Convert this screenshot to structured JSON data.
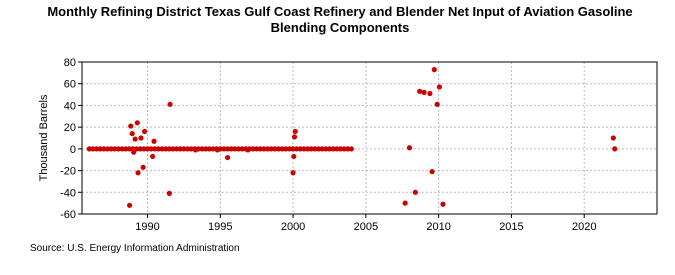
{
  "chart_data": {
    "type": "scatter",
    "title": "Monthly Refining District Texas Gulf Coast Refinery and Blender Net Input of Aviation Gasoline Blending Components",
    "y_label": "Thousand Barrels",
    "source": "Source: U.S. Energy Information Administration",
    "x": [
      1986,
      1986.25,
      1986.5,
      1986.75,
      1987,
      1987.25,
      1987.5,
      1987.75,
      1988,
      1988.25,
      1988.5,
      1988.75,
      1989,
      1989.25,
      1989.5,
      1989.75,
      1990,
      1990.25,
      1990.5,
      1990.75,
      1991,
      1991.25,
      1991.5,
      1991.75,
      1992,
      1992.25,
      1992.5,
      1992.75,
      1993,
      1993.25,
      1993.5,
      1993.75,
      1994,
      1994.25,
      1994.5,
      1994.75,
      1995,
      1995.25,
      1995.5,
      1995.75,
      1996,
      1996.25,
      1996.5,
      1996.75,
      1997,
      1997.25,
      1997.5,
      1997.75,
      1998,
      1998.25,
      1998.5,
      1998.75,
      1999,
      1999.25,
      1999.5,
      1999.75,
      2000,
      2000.25,
      2000.5,
      2000.75,
      2001,
      2001.25,
      2001.5,
      2001.75,
      2002,
      2002.25,
      2002.5,
      2002.75,
      2003,
      2003.25,
      2003.5,
      2003.75,
      2004,
      1988.77,
      1988.85,
      1988.95,
      1989.05,
      1989.15,
      1989.3,
      1989.35,
      1989.55,
      1989.7,
      1989.8,
      1990.35,
      1990.45,
      1991.55,
      1991.5,
      1993.3,
      1994.8,
      1995.5,
      1996.9,
      2000.0,
      2000.05,
      2000.1,
      2000.15,
      2007.7,
      2008.0,
      2008.4,
      2008.7,
      2009.0,
      2009.4,
      2009.55,
      2009.7,
      2009.9,
      2010.05,
      2010.3,
      2022.0,
      2022.1
    ],
    "series": [
      {
        "name": "Net Input",
        "color": "#cc0000",
        "values": [
          0,
          0,
          0,
          0,
          0,
          0,
          0,
          0,
          0,
          0,
          0,
          0,
          0,
          0,
          0,
          0,
          0,
          0,
          0,
          0,
          0,
          0,
          0,
          0,
          0,
          0,
          0,
          0,
          0,
          0,
          0,
          0,
          0,
          0,
          0,
          0,
          0,
          0,
          0,
          0,
          0,
          0,
          0,
          0,
          0,
          0,
          0,
          0,
          0,
          0,
          0,
          0,
          0,
          0,
          0,
          0,
          0,
          0,
          0,
          0,
          0,
          0,
          0,
          0,
          0,
          0,
          0,
          0,
          0,
          0,
          0,
          0,
          0,
          -52,
          21,
          14,
          -3,
          9,
          24,
          -22,
          10,
          -17,
          16,
          -7,
          7,
          41,
          -41,
          -1,
          -1,
          -8,
          -1,
          -22,
          -7,
          11,
          16,
          -50,
          1,
          -40,
          53,
          52,
          51,
          -21,
          73,
          41,
          57,
          -51,
          10,
          0
        ]
      }
    ],
    "xlim": [
      1985.5,
      2025
    ],
    "xticks": [
      1990,
      1995,
      2000,
      2005,
      2010,
      2015,
      2020
    ],
    "ylim": [
      -60,
      80
    ],
    "yticks": [
      -60,
      -40,
      -20,
      0,
      20,
      40,
      60,
      80
    ],
    "grid": true
  }
}
